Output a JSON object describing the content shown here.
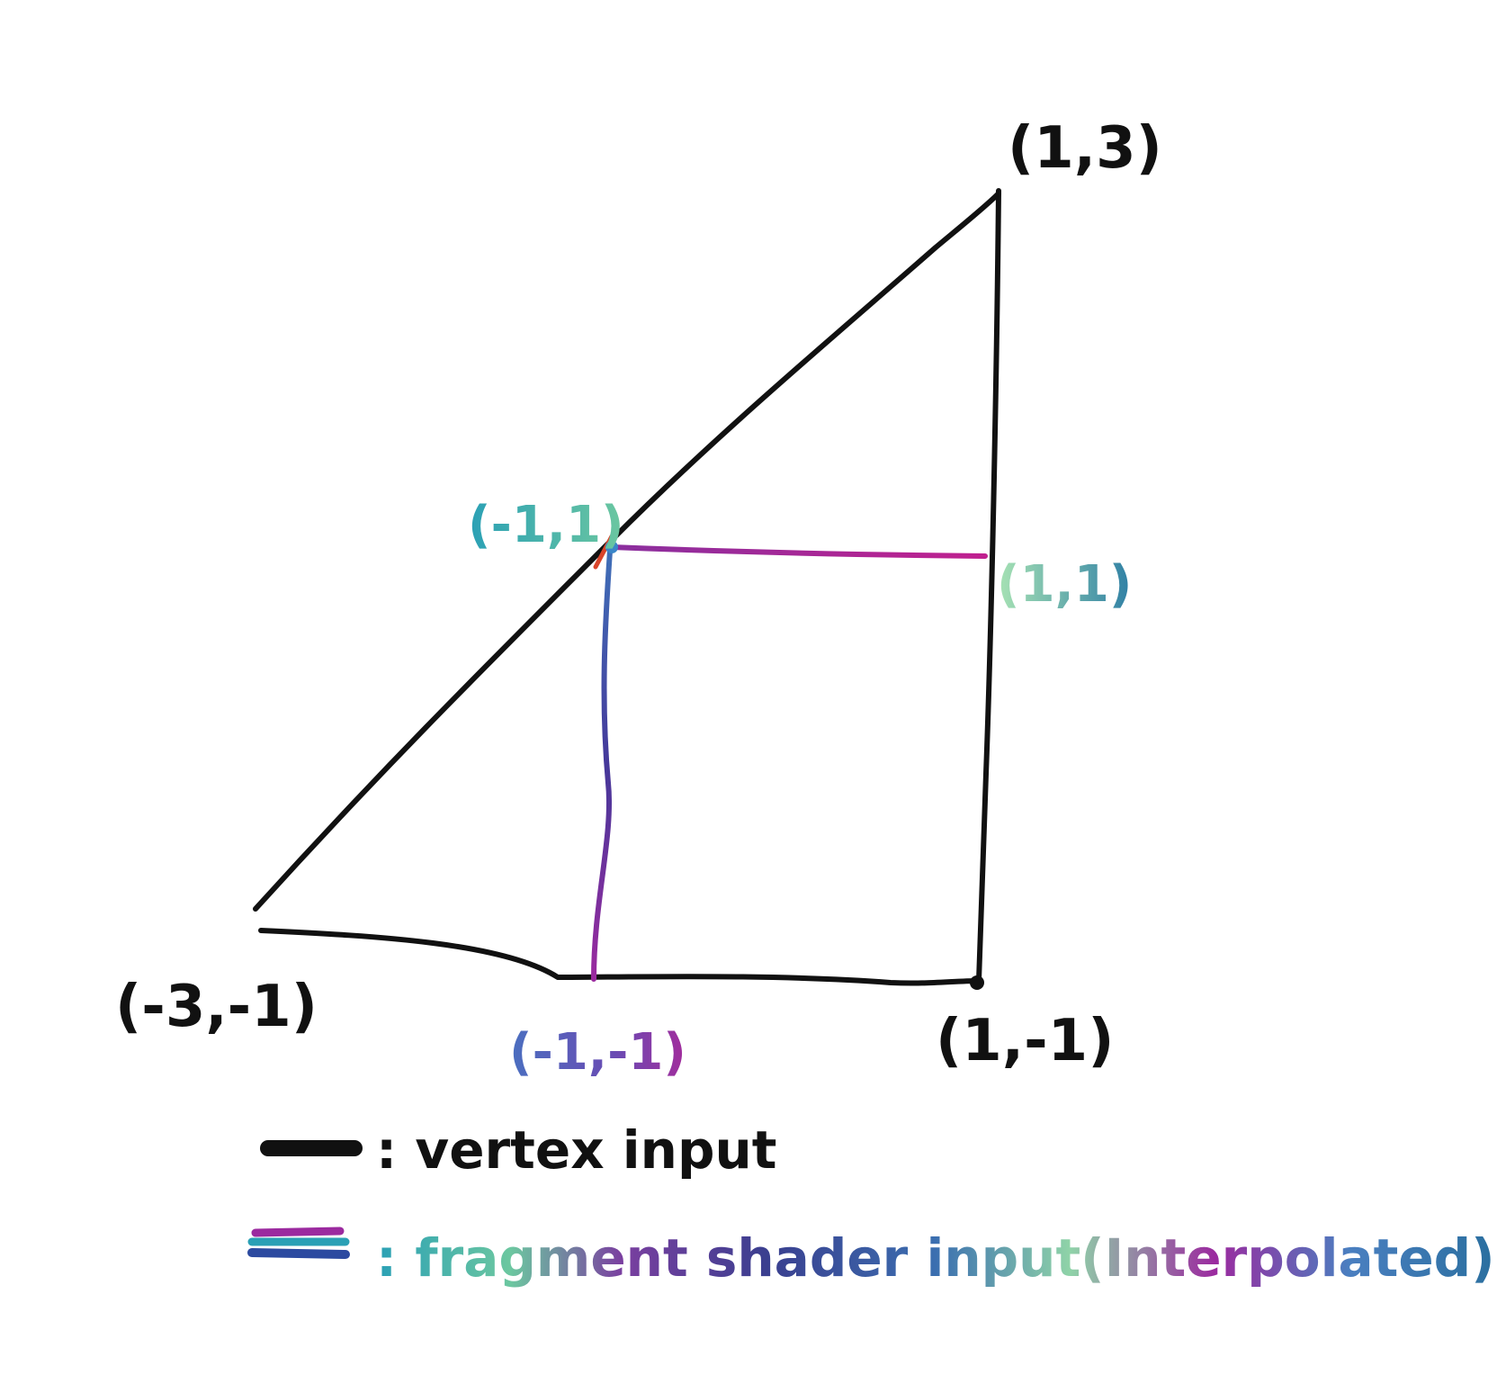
{
  "vertices": {
    "top": "(1,3)",
    "bottom_left": "(-3,-1)",
    "bottom_right": "(1,-1)"
  },
  "quad_corners": {
    "top_left": "(-1,1)",
    "top_right": "(1,1)",
    "bottom_left": "(-1,-1)"
  },
  "legend": {
    "vertex_label": ": vertex input",
    "fragment_label": ": fragment shader input(Interpolated)"
  },
  "colors": {
    "vertex": "#111111",
    "fragment_purple": "#9b2a9f",
    "fragment_blue": "#3a5aa8",
    "fragment_teal": "#2aa0b5",
    "fragment_green": "#8fd3a8"
  }
}
